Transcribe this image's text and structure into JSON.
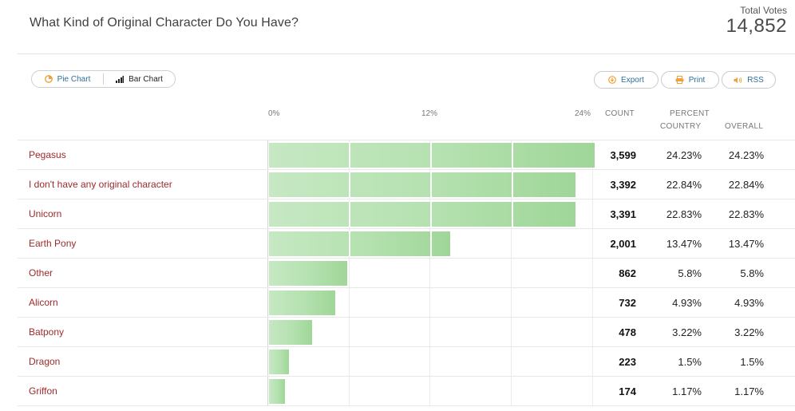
{
  "poll": {
    "title": "What Kind of Original Character Do You Have?",
    "total_votes_label": "Total Votes",
    "total_votes": "14,852"
  },
  "view_toggle": {
    "pie_label": "Pie Chart",
    "bar_label": "Bar Chart",
    "active": "Bar Chart"
  },
  "actions": {
    "export_label": "Export",
    "print_label": "Print",
    "rss_label": "RSS"
  },
  "table_headers": {
    "count": "COUNT",
    "percent": "PERCENT",
    "country": "COUNTRY",
    "overall": "OVERALL"
  },
  "colors": {
    "bar_fill": "#b4e1af",
    "label_text": "#9c2b2b",
    "action_text": "#2f6f9a",
    "pie_icon": "#f0a13a",
    "rss_icon": "#f0a13a"
  },
  "icons": {
    "pie": "pie-chart-icon",
    "bar": "bar-chart-icon",
    "export": "download-icon",
    "print": "printer-icon",
    "rss": "rss-icon"
  },
  "chart_data": {
    "type": "bar",
    "orientation": "horizontal",
    "x_ticks": [
      "0%",
      "12%",
      "24%"
    ],
    "xlim": [
      0,
      24
    ],
    "categories": [
      "Pegasus",
      "I don't have any original character",
      "Unicorn",
      "Earth Pony",
      "Other",
      "Alicorn",
      "Batpony",
      "Dragon",
      "Griffon"
    ],
    "counts": [
      "3,599",
      "3,392",
      "3,391",
      "2,001",
      "862",
      "732",
      "478",
      "223",
      "174"
    ],
    "percent_country": [
      "24.23%",
      "22.84%",
      "22.83%",
      "13.47%",
      "5.8%",
      "4.93%",
      "3.22%",
      "1.5%",
      "1.17%"
    ],
    "percent_overall": [
      "24.23%",
      "22.84%",
      "22.83%",
      "13.47%",
      "5.8%",
      "4.93%",
      "3.22%",
      "1.5%",
      "1.17%"
    ],
    "values": [
      24.23,
      22.84,
      22.83,
      13.47,
      5.8,
      4.93,
      3.22,
      1.5,
      1.17
    ]
  }
}
